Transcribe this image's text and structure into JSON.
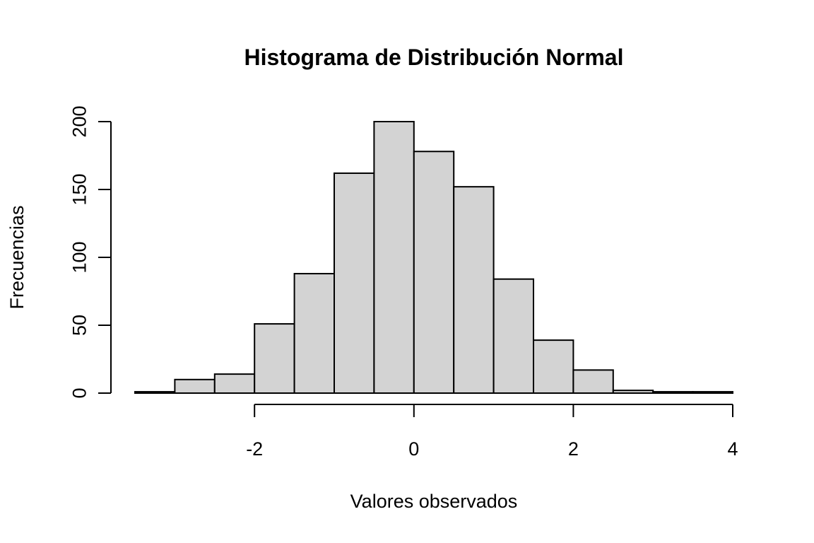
{
  "chart_data": {
    "type": "bar",
    "subtype": "histogram",
    "title": "Histograma de Distribución Normal",
    "xlabel": "Valores observados",
    "ylabel": "Frecuencias",
    "bin_edges": [
      -3.5,
      -3.0,
      -2.5,
      -2.0,
      -1.5,
      -1.0,
      -0.5,
      0.0,
      0.5,
      1.0,
      1.5,
      2.0,
      2.5,
      3.0,
      3.5,
      4.0
    ],
    "values": [
      1,
      10,
      14,
      51,
      88,
      162,
      200,
      178,
      152,
      84,
      39,
      17,
      2,
      1,
      1
    ],
    "xlim": [
      -3.5,
      4.0
    ],
    "ylim": [
      0,
      200
    ],
    "x_ticks": [
      -2,
      0,
      2,
      4
    ],
    "x_tick_labels": [
      "-2",
      "0",
      "2",
      "4"
    ],
    "y_ticks": [
      0,
      50,
      100,
      150,
      200
    ],
    "y_tick_labels": [
      "0",
      "50",
      "100",
      "150",
      "200"
    ],
    "bar_fill": "#d3d3d3",
    "bar_stroke": "#000000",
    "grid": false,
    "legend": "none"
  }
}
